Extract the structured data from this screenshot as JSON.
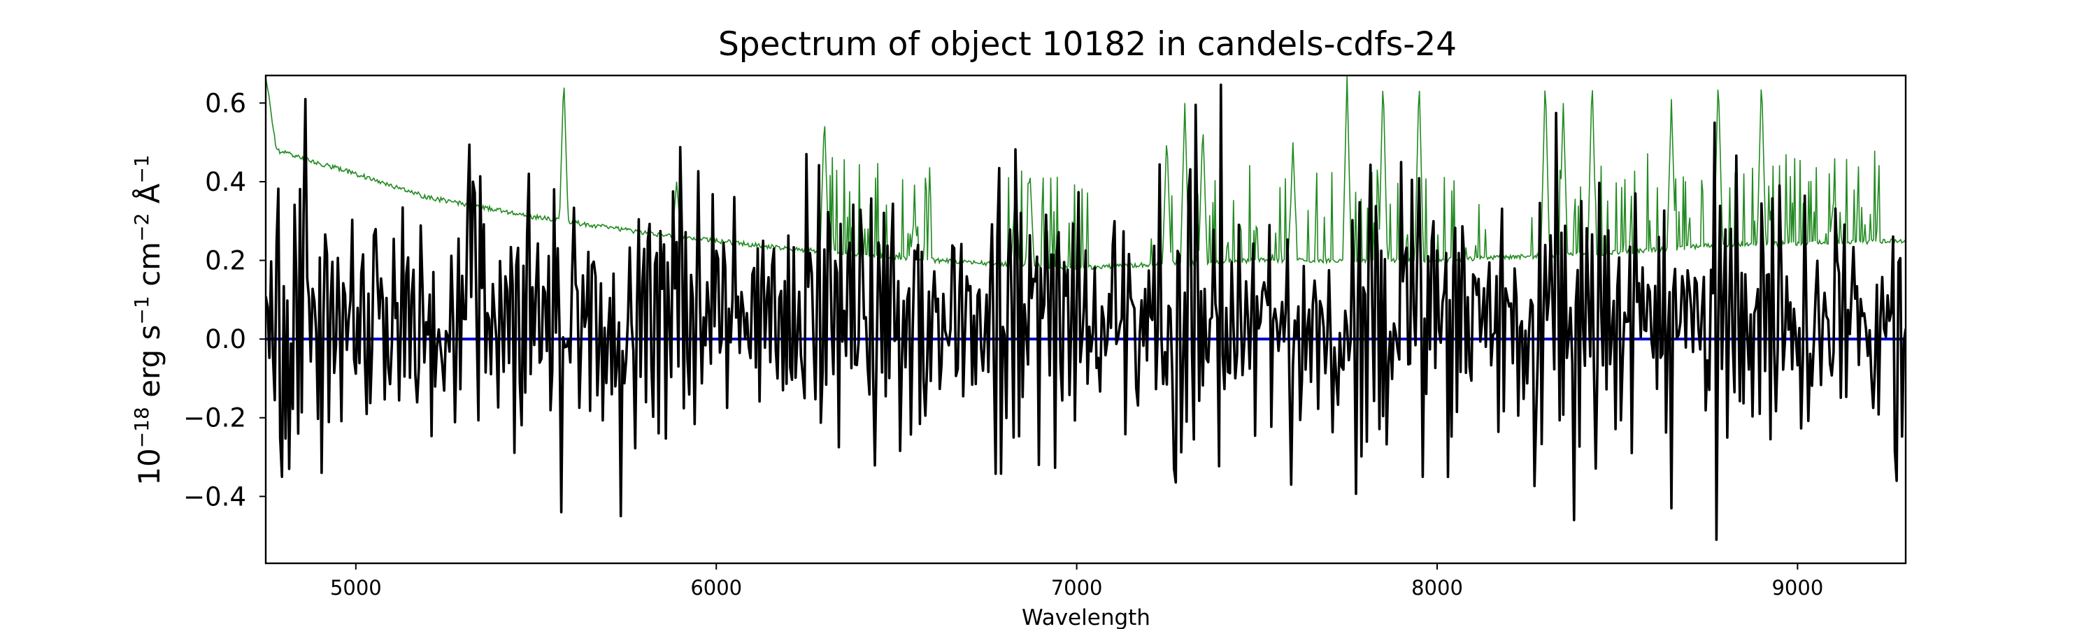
{
  "chart_data": {
    "type": "line",
    "title": "Spectrum of object 10182 in candels-cdfs-24",
    "xlabel": "Wavelength",
    "ylabel": {
      "base": "10",
      "exp": "−18",
      "rest1": " erg s",
      "exp1": "−1",
      "rest2": " cm",
      "exp2": "−2",
      "rest3": " Å",
      "exp3": "−1"
    },
    "xlim": [
      4750,
      9300
    ],
    "ylim": [
      -0.57,
      0.67
    ],
    "xticks": [
      5000,
      6000,
      7000,
      8000,
      9000
    ],
    "xtick_labels": [
      "5000",
      "6000",
      "7000",
      "8000",
      "9000"
    ],
    "yticks": [
      -0.4,
      -0.2,
      0.0,
      0.2,
      0.4,
      0.6
    ],
    "ytick_labels": [
      "−0.4",
      "−0.2",
      "0.0",
      "0.2",
      "0.4",
      "0.6"
    ],
    "grid": false,
    "series": [
      {
        "role": "flux",
        "color": "#000000",
        "x_start": 4750,
        "x_step": 5,
        "values": [
          0.02,
          -0.03,
          0.12,
          0.25,
          -0.15,
          -0.33,
          0.18,
          0.38,
          -0.3,
          0.05,
          0.2,
          -0.12,
          0.28,
          0.41,
          0.05,
          -0.2,
          0.61,
          0.15,
          -0.25,
          0.32,
          -0.05,
          0.3,
          -0.18,
          0.1,
          0.22,
          -0.08,
          0.26,
          0.05,
          0.1,
          -0.2,
          0.4,
          0.15,
          -0.05,
          0.22,
          0.08,
          -0.15,
          0.3,
          0.1,
          -0.2,
          0.12,
          0.35,
          0.05,
          -0.12,
          0.2,
          0.0,
          0.15,
          -0.05,
          0.1,
          0.28,
          -0.1,
          0.08,
          0.2,
          -0.15,
          0.05,
          0.25,
          0.1,
          -0.08,
          0.15,
          -0.2,
          0.05,
          0.3,
          0.1,
          0.12,
          -0.1,
          0.2,
          0.05,
          -0.08,
          0.12,
          0.0,
          -0.15,
          0.1,
          0.25,
          0.05,
          0.18,
          -0.05,
          0.08,
          0.22,
          -0.1,
          0.05,
          0.15,
          -0.05,
          0.1,
          0.2,
          0.0,
          -0.12,
          0.08,
          0.15,
          -0.05,
          0.1,
          0.05,
          0.18,
          0.0,
          -0.1,
          0.12,
          0.05,
          -0.05,
          0.15,
          0.08,
          0.0,
          -0.08
        ],
        "events": [
          {
            "x": 4795,
            "y": -0.35
          },
          {
            "x": 4815,
            "y": -0.33
          },
          {
            "x": 4860,
            "y": 0.61
          },
          {
            "x": 4905,
            "y": -0.34
          },
          {
            "x": 5325,
            "y": 0.4
          },
          {
            "x": 5480,
            "y": 0.42
          },
          {
            "x": 5570,
            "y": -0.44
          },
          {
            "x": 5735,
            "y": -0.45
          },
          {
            "x": 6250,
            "y": 0.47
          },
          {
            "x": 7270,
            "y": -0.33
          },
          {
            "x": 7595,
            "y": -0.37
          },
          {
            "x": 7960,
            "y": -0.35
          },
          {
            "x": 8380,
            "y": -0.46
          },
          {
            "x": 8650,
            "y": -0.43
          },
          {
            "x": 8775,
            "y": -0.51
          },
          {
            "x": 8770,
            "y": 0.55
          },
          {
            "x": 9305,
            "y": -0.28
          }
        ]
      },
      {
        "role": "error",
        "color": "#228b22",
        "continuum": [
          {
            "x": 4750,
            "y": 0.67
          },
          {
            "x": 4780,
            "y": 0.48
          },
          {
            "x": 4850,
            "y": 0.46
          },
          {
            "x": 5000,
            "y": 0.42
          },
          {
            "x": 5200,
            "y": 0.36
          },
          {
            "x": 5500,
            "y": 0.31
          },
          {
            "x": 5800,
            "y": 0.27
          },
          {
            "x": 6200,
            "y": 0.23
          },
          {
            "x": 6600,
            "y": 0.2
          },
          {
            "x": 7000,
            "y": 0.18
          },
          {
            "x": 7200,
            "y": 0.19
          },
          {
            "x": 7500,
            "y": 0.2
          },
          {
            "x": 8000,
            "y": 0.2
          },
          {
            "x": 8500,
            "y": 0.22
          },
          {
            "x": 8800,
            "y": 0.24
          },
          {
            "x": 9300,
            "y": 0.25
          }
        ],
        "features": [
          {
            "x": 5577,
            "y": 0.67
          },
          {
            "x": 5890,
            "y": 0.4
          },
          {
            "x": 6300,
            "y": 0.57
          },
          {
            "x": 6550,
            "y": 0.32
          },
          {
            "x": 6830,
            "y": 0.38
          },
          {
            "x": 6870,
            "y": 0.43
          },
          {
            "x": 7250,
            "y": 0.52
          },
          {
            "x": 7300,
            "y": 0.6
          },
          {
            "x": 7350,
            "y": 0.55
          },
          {
            "x": 7600,
            "y": 0.5
          },
          {
            "x": 7750,
            "y": 0.67
          },
          {
            "x": 7850,
            "y": 0.67
          },
          {
            "x": 7950,
            "y": 0.67
          },
          {
            "x": 8300,
            "y": 0.67
          },
          {
            "x": 8350,
            "y": 0.6
          },
          {
            "x": 8430,
            "y": 0.67
          },
          {
            "x": 8650,
            "y": 0.61
          },
          {
            "x": 8780,
            "y": 0.67
          },
          {
            "x": 8900,
            "y": 0.67
          },
          {
            "x": 9100,
            "y": 0.35
          }
        ]
      },
      {
        "role": "zero",
        "color": "#0000cc",
        "y": 0.0
      }
    ]
  }
}
